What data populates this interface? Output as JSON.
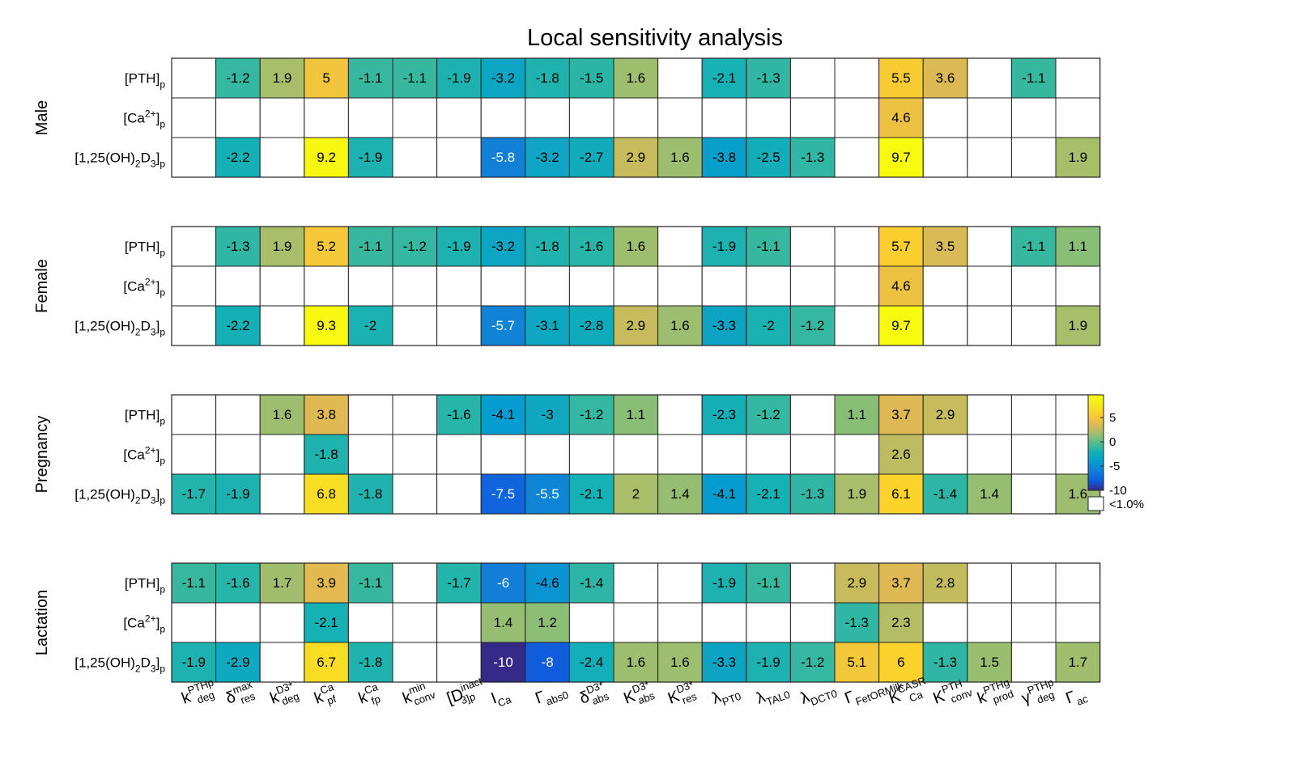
{
  "chart_data": {
    "type": "heatmap",
    "title": "Local sensitivity analysis",
    "columns": [
      {
        "base": "k",
        "sup": "PTHp",
        "sub": "deg"
      },
      {
        "base": "δ",
        "sup": "max",
        "sub": "res"
      },
      {
        "base": "k",
        "sup": "D3*",
        "sub": "deg"
      },
      {
        "base": "k",
        "sup": "Ca",
        "sub": "pf"
      },
      {
        "base": "k",
        "sup": "Ca",
        "sub": "fp"
      },
      {
        "base": "k",
        "sup": "min",
        "sub": "conv"
      },
      {
        "base": "[D",
        "sup": "inact",
        "sub": "3]p"
      },
      {
        "base": "I",
        "sup": "",
        "sub": "Ca"
      },
      {
        "base": "Γ",
        "sup": "",
        "sub": "abs0"
      },
      {
        "base": "δ",
        "sup": "D3*",
        "sub": "abs"
      },
      {
        "base": "K",
        "sup": "D3*",
        "sub": "abs"
      },
      {
        "base": "K",
        "sup": "D3*",
        "sub": "res"
      },
      {
        "base": "λ",
        "sup": "",
        "sub": "PT0"
      },
      {
        "base": "λ",
        "sup": "",
        "sub": "TAL0"
      },
      {
        "base": "λ",
        "sup": "",
        "sub": "DCT0"
      },
      {
        "base": "Γ",
        "sup": "",
        "sub": "FetORMilk"
      },
      {
        "base": "K",
        "sup": "CASR",
        "sub": "Ca"
      },
      {
        "base": "K",
        "sup": "PTH",
        "sub": "conv"
      },
      {
        "base": "k",
        "sup": "PTHg",
        "sub": "prod"
      },
      {
        "base": "γ",
        "sup": "PTHp",
        "sub": "deg"
      },
      {
        "base": "Γ",
        "sup": "",
        "sub": "ac"
      }
    ],
    "rows": [
      {
        "base": "[PTH]",
        "sub": "p"
      },
      {
        "base": "[Ca",
        "sup": "2+",
        "after": "]",
        "sub": "p"
      },
      {
        "base": "[1,25(OH)",
        "sub": "2",
        "mid": "D",
        "sub2": "3",
        "after": "]",
        "sub3": "p"
      }
    ],
    "groups": [
      {
        "name": "Male",
        "values": [
          [
            null,
            -1.2,
            1.9,
            5,
            -1.1,
            -1.1,
            -1.9,
            -3.2,
            -1.8,
            -1.5,
            1.6,
            null,
            -2.1,
            -1.3,
            null,
            null,
            5.5,
            3.6,
            null,
            -1.1,
            null
          ],
          [
            null,
            null,
            null,
            null,
            null,
            null,
            null,
            null,
            null,
            null,
            null,
            null,
            null,
            null,
            null,
            null,
            4.6,
            null,
            null,
            null,
            null
          ],
          [
            null,
            -2.2,
            null,
            9.2,
            -1.9,
            null,
            null,
            -5.8,
            -3.2,
            -2.7,
            2.9,
            1.6,
            -3.8,
            -2.5,
            -1.3,
            null,
            9.7,
            null,
            null,
            null,
            1.9
          ]
        ]
      },
      {
        "name": "Female",
        "values": [
          [
            null,
            -1.3,
            1.9,
            5.2,
            -1.1,
            -1.2,
            -1.9,
            -3.2,
            -1.8,
            -1.6,
            1.6,
            null,
            -1.9,
            -1.1,
            null,
            null,
            5.7,
            3.5,
            null,
            -1.1,
            1.1
          ],
          [
            null,
            null,
            null,
            null,
            null,
            null,
            null,
            null,
            null,
            null,
            null,
            null,
            null,
            null,
            null,
            null,
            4.6,
            null,
            null,
            null,
            null
          ],
          [
            null,
            -2.2,
            null,
            9.3,
            -2,
            null,
            null,
            -5.7,
            -3.1,
            -2.8,
            2.9,
            1.6,
            -3.3,
            -2,
            -1.2,
            null,
            9.7,
            null,
            null,
            null,
            1.9
          ]
        ]
      },
      {
        "name": "Pregnancy",
        "values": [
          [
            null,
            null,
            1.6,
            3.8,
            null,
            null,
            -1.6,
            -4.1,
            -3,
            -1.2,
            1.1,
            null,
            -2.3,
            -1.2,
            null,
            1.1,
            3.7,
            2.9,
            null,
            null,
            null
          ],
          [
            null,
            null,
            null,
            -1.8,
            null,
            null,
            null,
            null,
            null,
            null,
            null,
            null,
            null,
            null,
            null,
            null,
            2.6,
            null,
            null,
            null,
            null
          ],
          [
            -1.7,
            -1.9,
            null,
            6.8,
            -1.8,
            null,
            null,
            -7.5,
            -5.5,
            -2.1,
            2,
            1.4,
            -4.1,
            -2.1,
            -1.3,
            1.9,
            6.1,
            -1.4,
            1.4,
            null,
            1.6
          ]
        ]
      },
      {
        "name": "Lactation",
        "values": [
          [
            -1.1,
            -1.6,
            1.7,
            3.9,
            -1.1,
            null,
            -1.7,
            -6,
            -4.6,
            -1.4,
            null,
            null,
            -1.9,
            -1.1,
            null,
            2.9,
            3.7,
            2.8,
            null,
            null,
            null
          ],
          [
            null,
            null,
            null,
            -2.1,
            null,
            null,
            null,
            1.4,
            1.2,
            null,
            null,
            null,
            null,
            null,
            null,
            -1.3,
            2.3,
            null,
            null,
            null,
            null
          ],
          [
            -1.9,
            -2.9,
            null,
            6.7,
            -1.8,
            null,
            null,
            -10,
            -8,
            -2.4,
            1.6,
            1.6,
            -3.3,
            -1.9,
            -1.2,
            5.1,
            6,
            -1.3,
            1.5,
            null,
            1.7
          ]
        ]
      }
    ],
    "colorbar": {
      "range": [
        -10,
        9.7
      ],
      "ticks": [
        5,
        0,
        -5,
        -10
      ],
      "colormap": "parula",
      "empty_label": "<1.0%"
    }
  }
}
